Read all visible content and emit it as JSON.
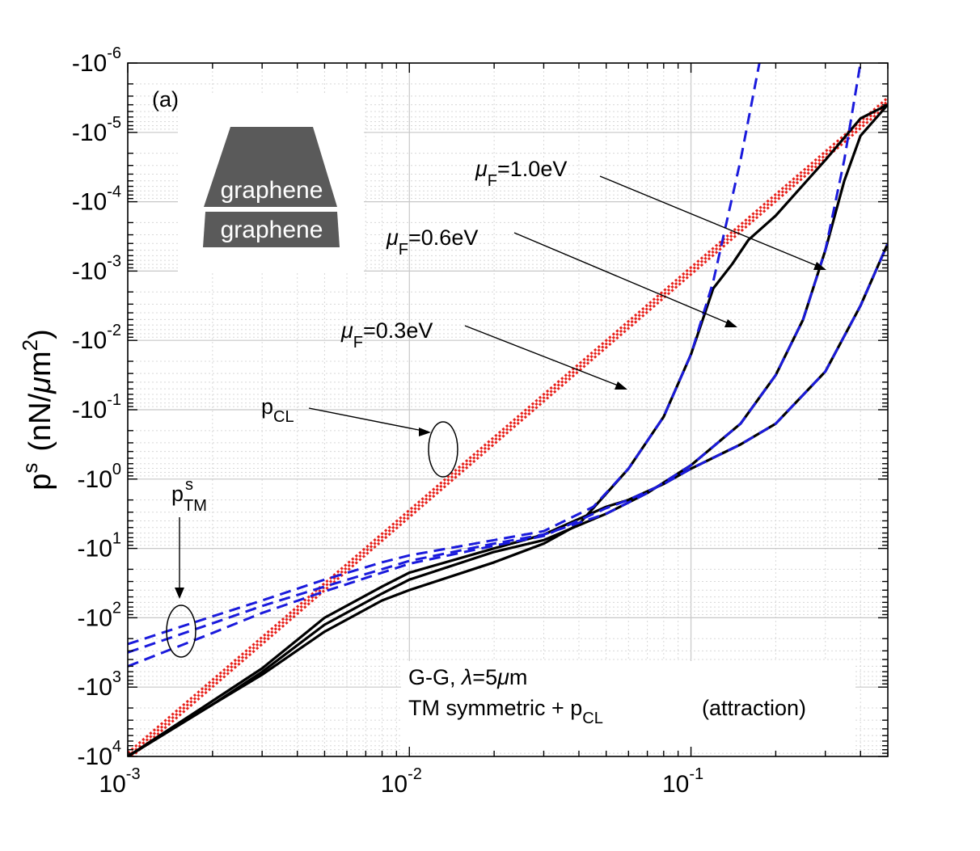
{
  "chart_data": {
    "type": "line",
    "panel_label": "(a)",
    "x_scale": "log",
    "y_scale": "log (reversed, negative values)",
    "xlim": [
      0.001,
      0.5
    ],
    "ylim": [
      -10000,
      -1e-06
    ],
    "ylabel": {
      "main": "p",
      "sup": "s",
      "unit_pre": "(nN/",
      "mu": "μ",
      "unit_m": "m",
      "unit_sup": "2",
      "unit_post": ")"
    },
    "x_ticks": [
      {
        "value": 0.001,
        "base": "10",
        "exp": "-3"
      },
      {
        "value": 0.01,
        "base": "10",
        "exp": "-2"
      },
      {
        "value": 0.1,
        "base": "10",
        "exp": "-1"
      }
    ],
    "y_ticks": [
      {
        "decade": -6,
        "base": "-10",
        "exp": "-6"
      },
      {
        "decade": -5,
        "base": "-10",
        "exp": "-5"
      },
      {
        "decade": -4,
        "base": "-10",
        "exp": "-4"
      },
      {
        "decade": -3,
        "base": "-10",
        "exp": "-3"
      },
      {
        "decade": -2,
        "base": "-10",
        "exp": "-2"
      },
      {
        "decade": -1,
        "base": "-10",
        "exp": "-1"
      },
      {
        "decade": 0,
        "base": "-10",
        "exp": "0"
      },
      {
        "decade": 1,
        "base": "-10",
        "exp": "1"
      },
      {
        "decade": 2,
        "base": "-10",
        "exp": "2"
      },
      {
        "decade": 3,
        "base": "-10",
        "exp": "3"
      },
      {
        "decade": 4,
        "base": "-10",
        "exp": "4"
      }
    ],
    "grid": true,
    "series": [
      {
        "name": "TM symmetric + p_CL, μF=1.0eV",
        "style": "solid",
        "color": "#000000",
        "points": [
          [
            0.001,
            4.0
          ],
          [
            0.002,
            3.25
          ],
          [
            0.003,
            2.82
          ],
          [
            0.005,
            2.2
          ],
          [
            0.008,
            1.75
          ],
          [
            0.01,
            1.6
          ],
          [
            0.02,
            1.2
          ],
          [
            0.03,
            0.93
          ],
          [
            0.04,
            0.65
          ],
          [
            0.06,
            -0.15
          ],
          [
            0.08,
            -0.9
          ],
          [
            0.1,
            -1.8
          ],
          [
            0.12,
            -2.75
          ],
          [
            0.14,
            -3.1
          ],
          [
            0.16,
            -3.45
          ],
          [
            0.2,
            -3.8
          ],
          [
            0.3,
            -4.6
          ],
          [
            0.4,
            -5.2
          ],
          [
            0.5,
            -5.4
          ]
        ]
      },
      {
        "name": "TM symmetric + p_CL, μF=0.6eV",
        "style": "solid",
        "color": "#000000",
        "points": [
          [
            0.001,
            4.0
          ],
          [
            0.002,
            3.25
          ],
          [
            0.003,
            2.78
          ],
          [
            0.005,
            2.1
          ],
          [
            0.008,
            1.65
          ],
          [
            0.01,
            1.45
          ],
          [
            0.02,
            1.05
          ],
          [
            0.03,
            0.88
          ],
          [
            0.05,
            0.5
          ],
          [
            0.07,
            0.2
          ],
          [
            0.1,
            -0.2
          ],
          [
            0.15,
            -0.8
          ],
          [
            0.2,
            -1.5
          ],
          [
            0.25,
            -2.3
          ],
          [
            0.3,
            -3.3
          ],
          [
            0.35,
            -4.3
          ],
          [
            0.4,
            -4.95
          ],
          [
            0.5,
            -5.4
          ]
        ]
      },
      {
        "name": "TM symmetric + p_CL, μF=0.3eV",
        "style": "solid",
        "color": "#000000",
        "points": [
          [
            0.001,
            4.0
          ],
          [
            0.002,
            3.2
          ],
          [
            0.003,
            2.73
          ],
          [
            0.005,
            2.0
          ],
          [
            0.008,
            1.55
          ],
          [
            0.01,
            1.35
          ],
          [
            0.02,
            1.0
          ],
          [
            0.03,
            0.8
          ],
          [
            0.05,
            0.4
          ],
          [
            0.06,
            0.3
          ],
          [
            0.08,
            0.07
          ],
          [
            0.1,
            -0.15
          ],
          [
            0.15,
            -0.5
          ],
          [
            0.2,
            -0.8
          ],
          [
            0.3,
            -1.55
          ],
          [
            0.4,
            -2.5
          ],
          [
            0.5,
            -3.4
          ]
        ]
      },
      {
        "name": "p_TM^s, μF=1.0eV",
        "style": "dashed",
        "color": "#1a1adc",
        "points": [
          [
            0.001,
            2.38
          ],
          [
            0.002,
            1.98
          ],
          [
            0.003,
            1.75
          ],
          [
            0.005,
            1.45
          ],
          [
            0.008,
            1.2
          ],
          [
            0.01,
            1.1
          ],
          [
            0.02,
            0.88
          ],
          [
            0.03,
            0.75
          ],
          [
            0.045,
            0.4
          ],
          [
            0.06,
            -0.15
          ],
          [
            0.08,
            -0.9
          ],
          [
            0.1,
            -1.8
          ],
          [
            0.12,
            -2.85
          ],
          [
            0.15,
            -4.6
          ],
          [
            0.175,
            -6.0
          ]
        ]
      },
      {
        "name": "p_TM^s, μF=0.6eV",
        "style": "dashed",
        "color": "#1a1adc",
        "points": [
          [
            0.001,
            2.5
          ],
          [
            0.002,
            2.08
          ],
          [
            0.003,
            1.83
          ],
          [
            0.005,
            1.55
          ],
          [
            0.008,
            1.3
          ],
          [
            0.01,
            1.18
          ],
          [
            0.02,
            0.93
          ],
          [
            0.03,
            0.8
          ],
          [
            0.05,
            0.5
          ],
          [
            0.07,
            0.2
          ],
          [
            0.1,
            -0.2
          ],
          [
            0.15,
            -0.8
          ],
          [
            0.2,
            -1.5
          ],
          [
            0.25,
            -2.3
          ],
          [
            0.3,
            -3.3
          ],
          [
            0.35,
            -4.6
          ],
          [
            0.4,
            -6.0
          ]
        ]
      },
      {
        "name": "p_TM^s, μF=0.3eV",
        "style": "dashed",
        "color": "#1a1adc",
        "points": [
          [
            0.001,
            2.7
          ],
          [
            0.002,
            2.22
          ],
          [
            0.003,
            1.93
          ],
          [
            0.005,
            1.62
          ],
          [
            0.008,
            1.35
          ],
          [
            0.01,
            1.22
          ],
          [
            0.02,
            0.96
          ],
          [
            0.03,
            0.82
          ],
          [
            0.05,
            0.42
          ],
          [
            0.06,
            0.3
          ],
          [
            0.08,
            0.07
          ],
          [
            0.1,
            -0.15
          ],
          [
            0.15,
            -0.5
          ],
          [
            0.2,
            -0.8
          ],
          [
            0.3,
            -1.55
          ],
          [
            0.4,
            -2.5
          ],
          [
            0.5,
            -3.4
          ]
        ]
      },
      {
        "name": "p_CL (1)",
        "style": "dotted",
        "color": "#e8201a",
        "points": [
          [
            0.001,
            4.0
          ],
          [
            0.5,
            -5.45
          ]
        ]
      },
      {
        "name": "p_CL (2)",
        "style": "dotted",
        "color": "#e8201a",
        "points": [
          [
            0.001,
            3.95
          ],
          [
            0.5,
            -5.5
          ]
        ]
      },
      {
        "name": "p_CL (3)",
        "style": "dotted",
        "color": "#e8201a",
        "points": [
          [
            0.001,
            4.05
          ],
          [
            0.5,
            -5.4
          ]
        ]
      }
    ],
    "annotations": {
      "mu1": {
        "sym": "μ",
        "sub": "F",
        "text": "=1.0eV"
      },
      "mu2": {
        "sym": "μ",
        "sub": "F",
        "text": "=0.6eV"
      },
      "mu3": {
        "sym": "μ",
        "sub": "F",
        "text": "=0.3eV"
      },
      "pcl": {
        "main": "p",
        "sub": "CL"
      },
      "ptm": {
        "main": "p",
        "sup": "s",
        "sub": "TM"
      },
      "legend": {
        "line1_pre": "G-G, ",
        "lambda": "λ",
        "line1_mid": "=5",
        "mu": "μ",
        "line1_post": "m",
        "line2_pre": "TM symmetric + p",
        "line2_sub": "CL",
        "line2_post": "(attraction)"
      }
    },
    "inset": {
      "layer_top": "graphene",
      "layer_bottom": "graphene",
      "fill_color": "#5a5a5a",
      "text_color": "#ffffff"
    }
  }
}
